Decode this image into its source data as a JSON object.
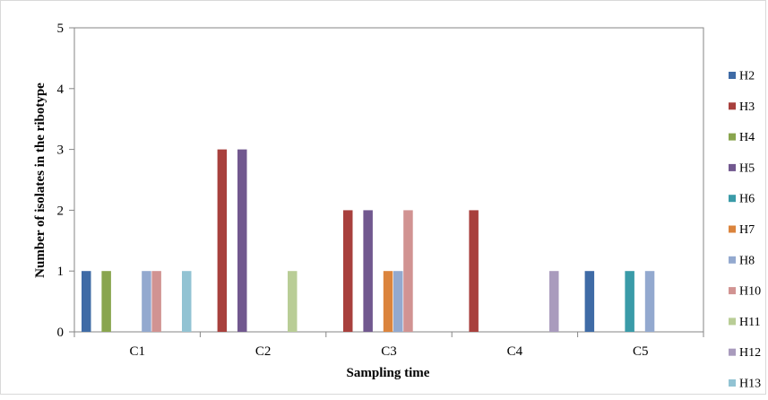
{
  "chart_data": {
    "type": "bar",
    "title": "",
    "xlabel": "Sampling time",
    "ylabel": "Number of isolates in the ribotype",
    "categories": [
      "C1",
      "C2",
      "C3",
      "C4",
      "C5"
    ],
    "ylim": [
      0,
      5
    ],
    "yticks": [
      0,
      1,
      2,
      3,
      4,
      5
    ],
    "grid": false,
    "legend_position": "right",
    "series": [
      {
        "name": "H2",
        "color": "#3F6BA6",
        "values": [
          1,
          0,
          0,
          0,
          1
        ]
      },
      {
        "name": "H3",
        "color": "#A8403D",
        "values": [
          0,
          3,
          2,
          2,
          0
        ]
      },
      {
        "name": "H4",
        "color": "#89A54E",
        "values": [
          1,
          0,
          0,
          0,
          0
        ]
      },
      {
        "name": "H5",
        "color": "#71588F",
        "values": [
          0,
          3,
          2,
          0,
          0
        ]
      },
      {
        "name": "H6",
        "color": "#3A9BA8",
        "values": [
          0,
          0,
          0,
          0,
          1
        ]
      },
      {
        "name": "H7",
        "color": "#DB843D",
        "values": [
          0,
          0,
          1,
          0,
          0
        ]
      },
      {
        "name": "H8",
        "color": "#93A9CF",
        "values": [
          1,
          0,
          1,
          0,
          1
        ]
      },
      {
        "name": "H10",
        "color": "#D19392",
        "values": [
          1,
          0,
          2,
          0,
          0
        ]
      },
      {
        "name": "H11",
        "color": "#B9CD96",
        "values": [
          0,
          1,
          0,
          0,
          0
        ]
      },
      {
        "name": "H12",
        "color": "#A99BBD",
        "values": [
          0,
          0,
          0,
          1,
          0
        ]
      },
      {
        "name": "H13",
        "color": "#92C3D3",
        "values": [
          1,
          0,
          0,
          0,
          0
        ]
      }
    ]
  }
}
